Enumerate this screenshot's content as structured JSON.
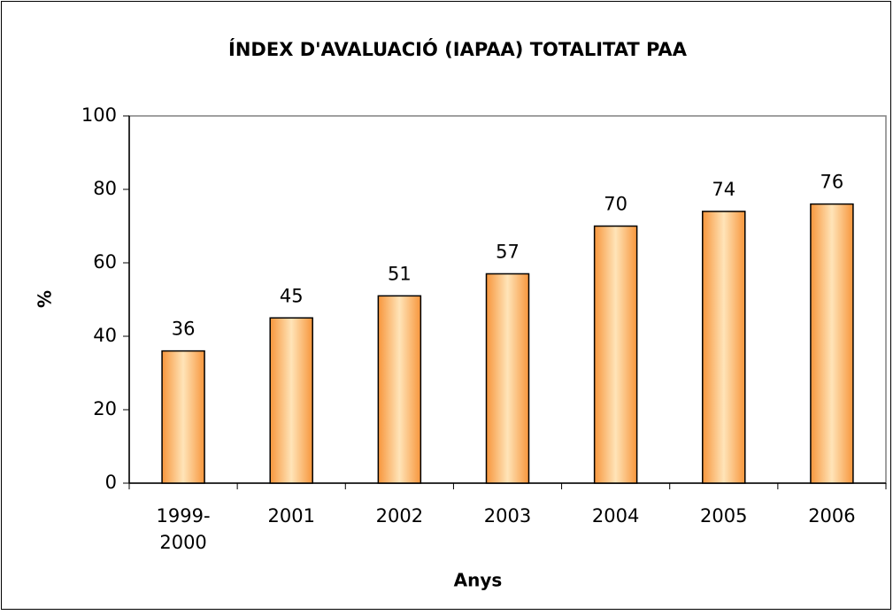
{
  "chart_data": {
    "type": "bar",
    "title": "ÍNDEX D'AVALUACIÓ (IAPAA) TOTALITAT PAA",
    "categories": [
      "1999-2000",
      "2001",
      "2002",
      "2003",
      "2004",
      "2005",
      "2006"
    ],
    "values": [
      36,
      45,
      51,
      57,
      70,
      74,
      76
    ],
    "color": "#f7963c",
    "xlabel": "Anys",
    "ylabel": "%",
    "ylim": [
      0,
      100
    ],
    "yticks": [
      0,
      20,
      40,
      60,
      80,
      100
    ],
    "grid": false
  }
}
